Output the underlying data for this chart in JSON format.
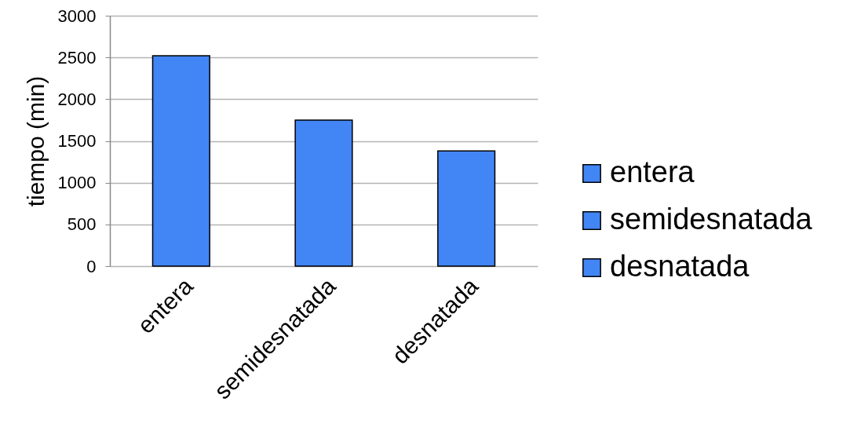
{
  "chart_data": {
    "type": "bar",
    "ylabel": "tiempo (min)",
    "categories": [
      "entera",
      "semidesnatada",
      "desnatada"
    ],
    "series": [
      {
        "name": "entera",
        "color": "#4285f4",
        "values": [
          2520,
          null,
          null
        ]
      },
      {
        "name": "semidesnatada",
        "color": "#4285f4",
        "values": [
          null,
          1750,
          null
        ]
      },
      {
        "name": "desnatada",
        "color": "#4285f4",
        "values": [
          null,
          null,
          1380
        ]
      }
    ],
    "stacked": true,
    "ylim": [
      0,
      3000
    ],
    "yticks": [
      0,
      500,
      1000,
      1500,
      2000,
      2500,
      3000
    ],
    "grid": "y",
    "legend": "right"
  }
}
